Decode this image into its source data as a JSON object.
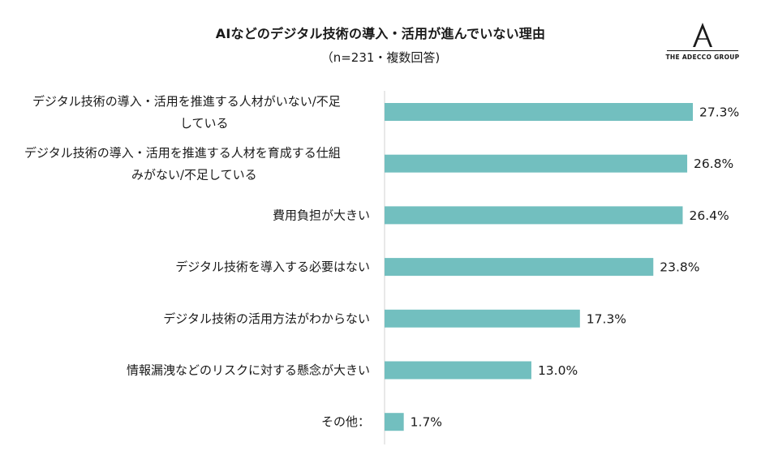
{
  "title": "AIなどのデジタル技術の導入・活用が進んでいない理由",
  "subtitle": "（n=231・複数回答)",
  "logo": {
    "text": "THE ADECCO GROUP"
  },
  "colors": {
    "bar": "#72bfbf",
    "axis": "#d0d0d0"
  },
  "chart_data": {
    "type": "bar",
    "orientation": "horizontal",
    "title": "AIなどのデジタル技術の導入・活用が進んでいない理由",
    "subtitle": "（n=231・複数回答)",
    "categories": [
      [
        "デジタル技術の導入・活用を推進する人材がいない/不足",
        "している"
      ],
      [
        "デジタル技術の導入・活用を推進する人材を育成する仕組",
        "みがない/不足している"
      ],
      [
        "費用負担が大きい"
      ],
      [
        "デジタル技術を導入する必要はない"
      ],
      [
        "デジタル技術の活用方法がわからない"
      ],
      [
        "情報漏洩などのリスクに対する懸念が大きい"
      ],
      [
        "その他："
      ]
    ],
    "values": [
      27.3,
      26.8,
      26.4,
      23.8,
      17.3,
      13.0,
      1.7
    ],
    "value_labels": [
      "27.3%",
      "26.8%",
      "26.4%",
      "23.8%",
      "17.3%",
      "13.0%",
      "1.7%"
    ],
    "xlim": [
      0,
      27.3
    ],
    "grid": false
  }
}
